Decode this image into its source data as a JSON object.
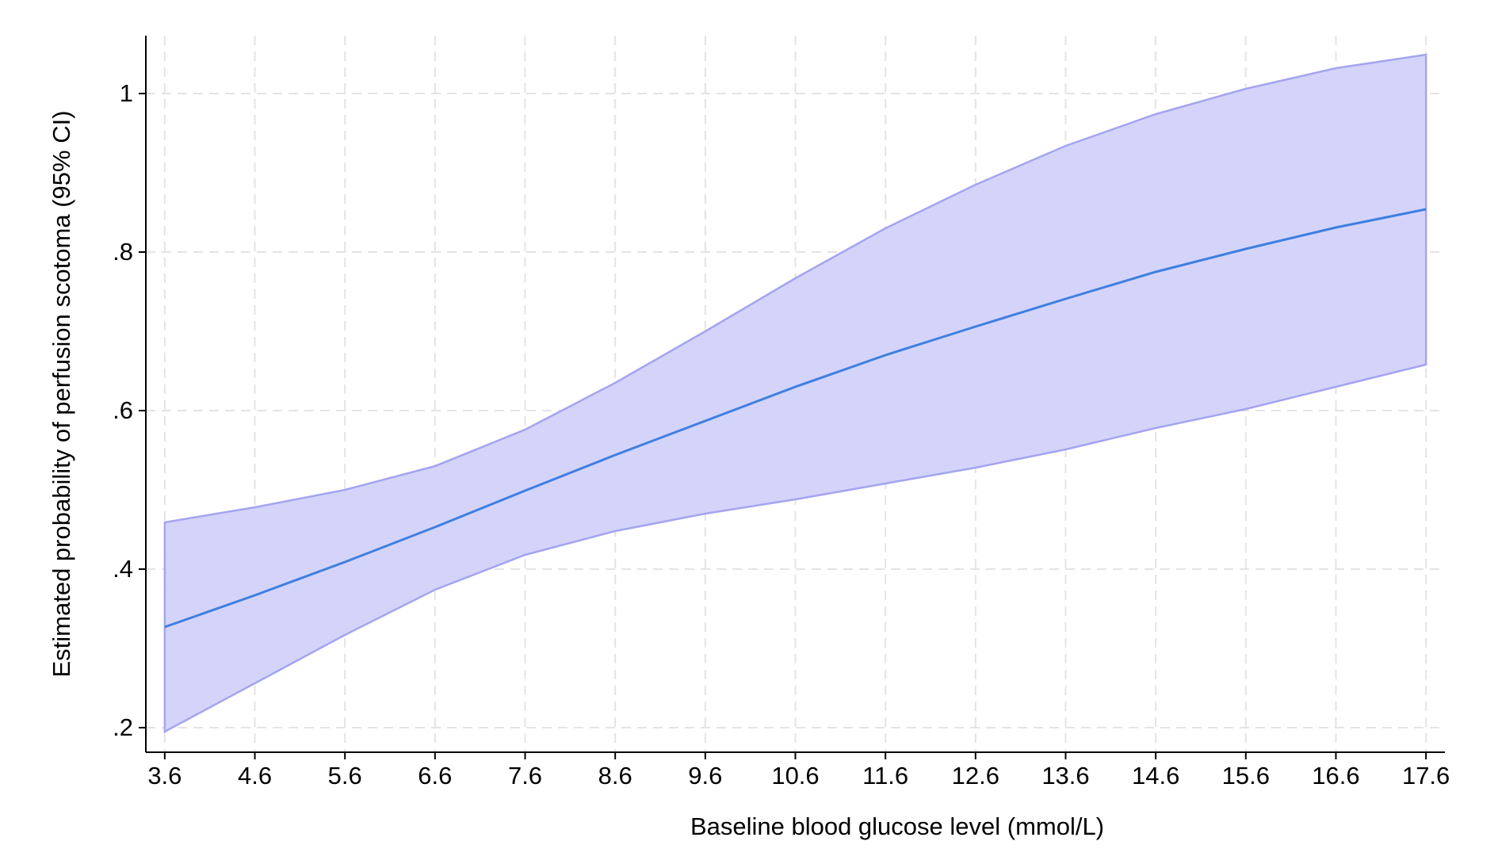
{
  "chart_data": {
    "type": "line_ci",
    "x_label": "Baseline blood glucose level (mmol/L)",
    "y_label": "Estimated probability of perfusion scotoma (95% CI)",
    "x": [
      3.6,
      4.6,
      5.6,
      6.6,
      7.6,
      8.6,
      9.6,
      10.6,
      11.6,
      12.6,
      13.6,
      14.6,
      15.6,
      16.6,
      17.6
    ],
    "values": [
      0.327,
      0.367,
      0.409,
      0.453,
      0.499,
      0.544,
      0.587,
      0.63,
      0.67,
      0.706,
      0.741,
      0.775,
      0.804,
      0.831,
      0.854
    ],
    "ci_upper": [
      0.459,
      0.478,
      0.5,
      0.53,
      0.576,
      0.635,
      0.7,
      0.767,
      0.83,
      0.885,
      0.934,
      0.974,
      1.006,
      1.032,
      1.049
    ],
    "ci_lower": [
      0.195,
      0.256,
      0.317,
      0.374,
      0.418,
      0.448,
      0.47,
      0.488,
      0.508,
      0.528,
      0.551,
      0.578,
      0.602,
      0.63,
      0.658
    ],
    "line_color": "#3f7fe0",
    "band_color": "#d4d4fb",
    "band_edge_color": "#a4a4f0",
    "xlim": [
      3.39,
      17.81
    ],
    "ylim": [
      0.169,
      1.073
    ],
    "xticks": [
      3.6,
      4.6,
      5.6,
      6.6,
      7.6,
      8.6,
      9.6,
      10.6,
      11.6,
      12.6,
      13.6,
      14.6,
      15.6,
      16.6,
      17.6
    ],
    "yticks": [
      {
        "value": 0.2,
        "label": ".2"
      },
      {
        "value": 0.4,
        "label": ".4"
      },
      {
        "value": 0.6,
        "label": ".6"
      },
      {
        "value": 0.8,
        "label": ".8"
      },
      1
    ],
    "grid": true
  }
}
